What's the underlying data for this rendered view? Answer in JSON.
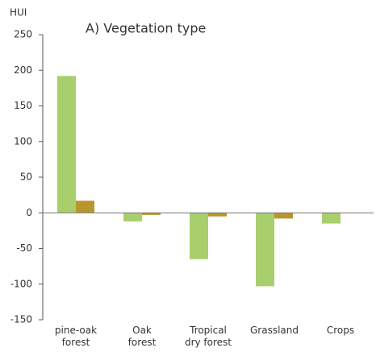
{
  "chart_data": {
    "type": "bar",
    "title": "A) Vegetation type",
    "y_label": "HUI",
    "categories": [
      "pine-oak\nforest",
      "Oak\nforest",
      "Tropical\ndry forest",
      "Grassland",
      "Crops"
    ],
    "series": [
      {
        "color": "#a8cf6c",
        "values": [
          192,
          -12,
          -65,
          -103,
          -15
        ]
      },
      {
        "color": "#b8962c",
        "values": [
          17,
          -3,
          -5,
          -8,
          null
        ]
      }
    ],
    "ylim": [
      -150,
      250
    ],
    "yticks": [
      -150,
      -100,
      -50,
      0,
      50,
      100,
      150,
      200,
      250
    ]
  }
}
